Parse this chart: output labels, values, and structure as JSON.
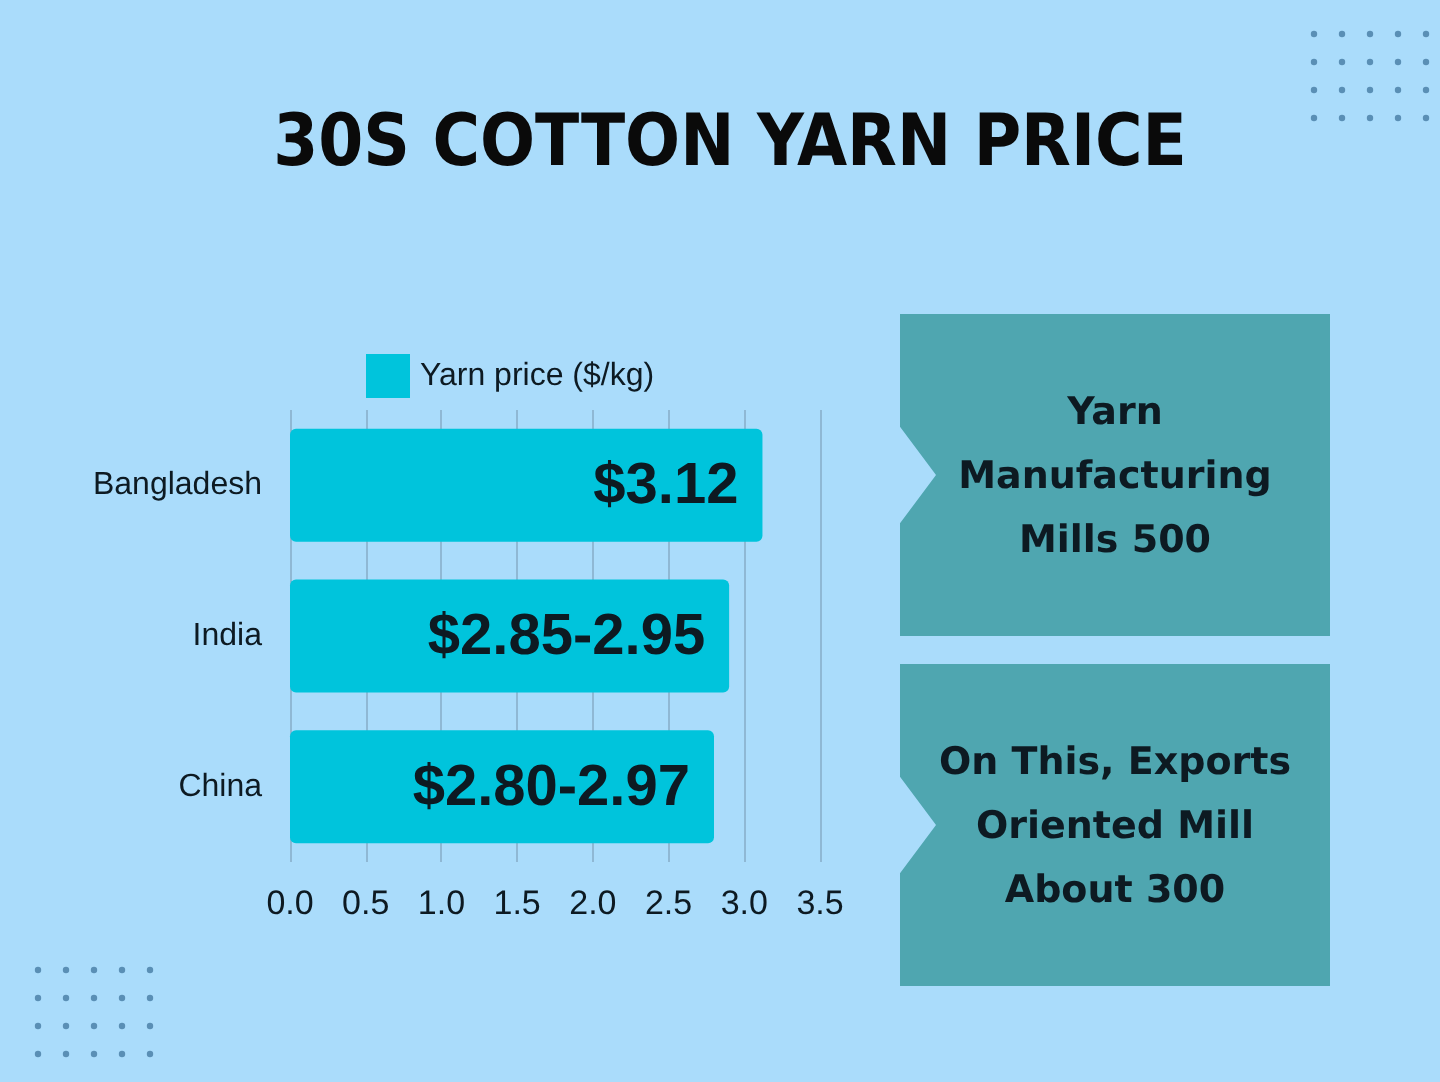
{
  "chart_data": [
    {
      "type": "bar",
      "orientation": "horizontal",
      "title": "30S COTTON YARN PRICE",
      "categories": [
        "Bangladesh",
        "India",
        "China"
      ],
      "series": [
        {
          "name": "Yarn price ($/kg)",
          "color": "#00c4dc",
          "values": [
            3.12,
            2.9,
            2.8
          ],
          "value_labels": [
            "$3.12",
            "$2.85-2.95",
            "$2.80-2.97"
          ]
        }
      ],
      "xlim": [
        0,
        3.5
      ],
      "xticks": [
        {
          "value": 0,
          "label": "0.0"
        },
        0.5,
        {
          "value": 1,
          "label": "1.0"
        },
        1.5,
        {
          "value": 2,
          "label": "2.0"
        },
        2.5,
        {
          "value": 3,
          "label": "3.0"
        },
        3.5
      ],
      "grid": "x",
      "legend": "top"
    },
    {
      "type": "other",
      "annotations": [
        "Yarn Manufacturing Mills 500",
        "On This, Exports Oriented Mill About 300"
      ]
    }
  ]
}
